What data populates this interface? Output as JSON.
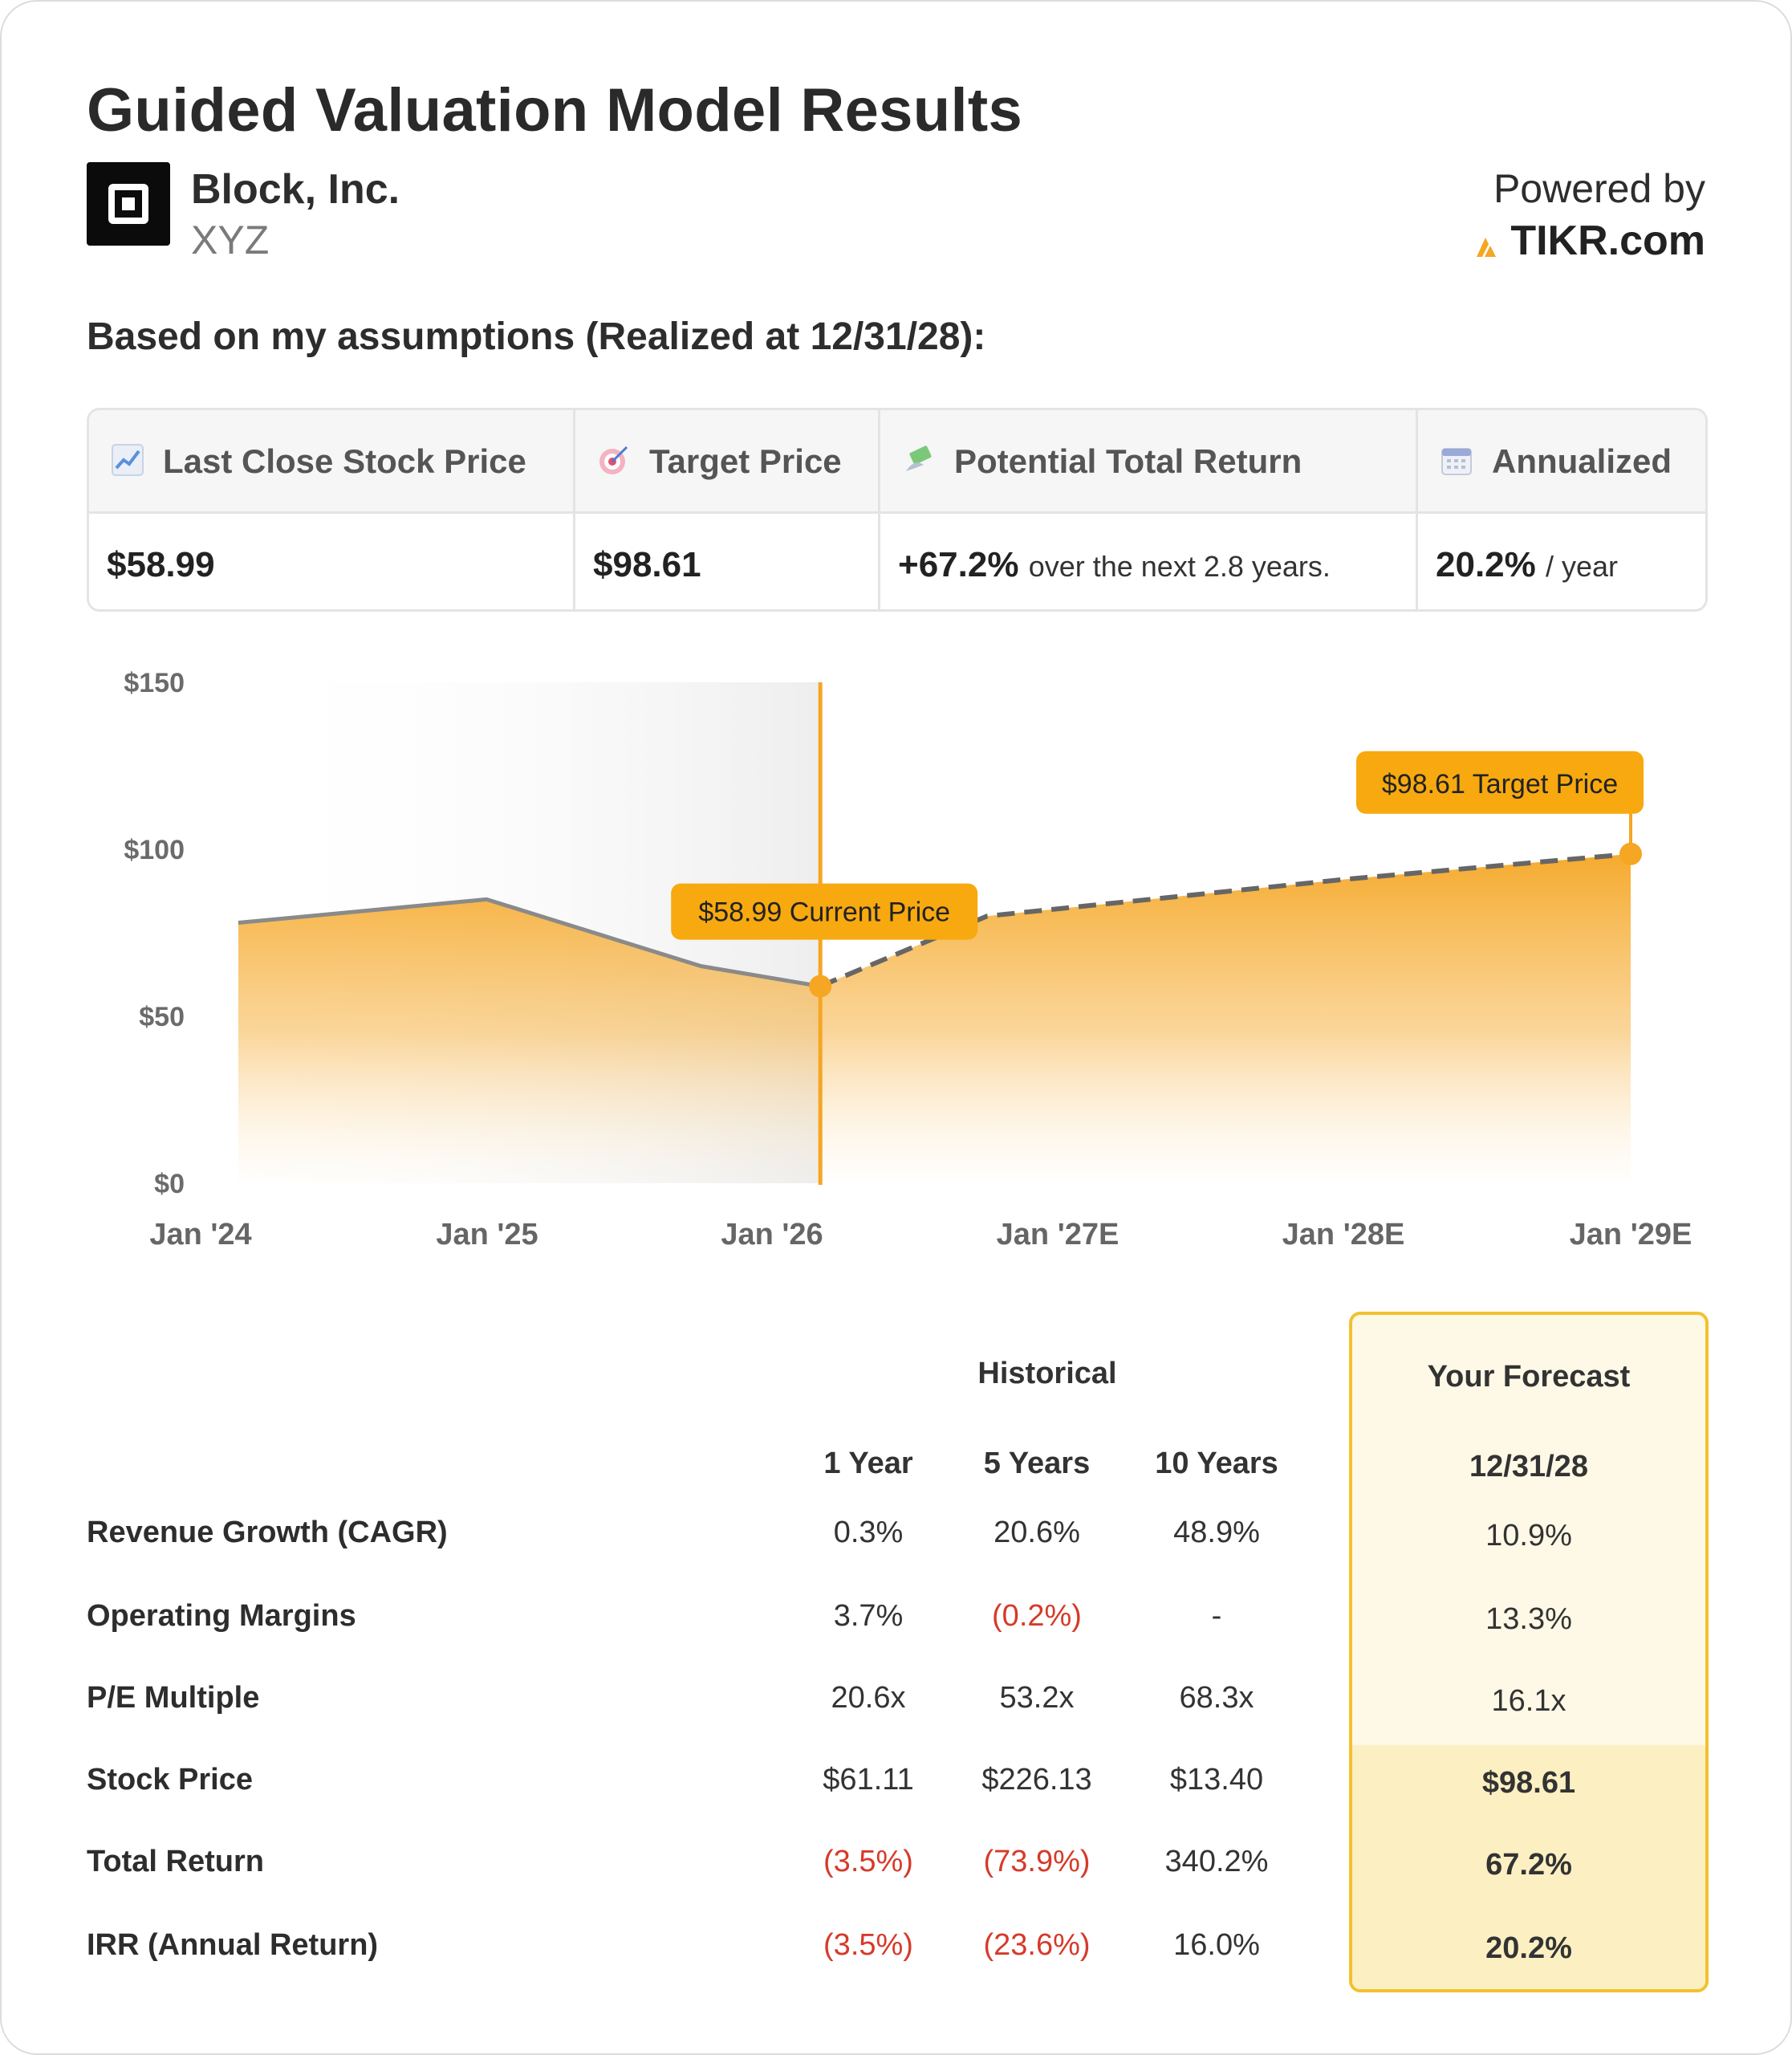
{
  "title": "Guided Valuation Model Results",
  "company": {
    "name": "Block, Inc.",
    "ticker": "XYZ"
  },
  "powered_by": {
    "label": "Powered by",
    "brand": "TIKR.com"
  },
  "assumption_text": "Based on my assumptions (Realized at 12/31/28):",
  "summary": {
    "last_close": {
      "label": "Last Close Stock Price",
      "value": "$58.99",
      "icon": "chart-increasing-icon"
    },
    "target": {
      "label": "Target Price",
      "value": "$98.61",
      "icon": "target-icon"
    },
    "potential": {
      "label": "Potential Total Return",
      "value": "+67.2%",
      "suffix": "over the next 2.8 years.",
      "icon": "money-wings-icon"
    },
    "annualized": {
      "label": "Annualized",
      "value": "20.2%",
      "suffix": "/ year",
      "icon": "calendar-icon"
    }
  },
  "chart_data": {
    "type": "area",
    "y_ticks": [
      "$150",
      "$100",
      "$50",
      "$0"
    ],
    "ylim": [
      0,
      150
    ],
    "x_ticks": [
      "Jan '24",
      "Jan '25",
      "Jan '26",
      "Jan '27E",
      "Jan '28E",
      "Jan '29E"
    ],
    "historical": [
      {
        "x": "Jan '24",
        "y": 78
      },
      {
        "x": "Jan '25",
        "y": 85
      },
      {
        "x": "Oct '25",
        "y": 65
      },
      {
        "x": "Mar '26",
        "y": 58.99
      }
    ],
    "forecast": [
      {
        "x": "Mar '26",
        "y": 58.99
      },
      {
        "x": "Oct '26",
        "y": 80
      },
      {
        "x": "Jan '28E",
        "y": 91
      },
      {
        "x": "Jan '29E",
        "y": 98.61
      }
    ],
    "annotations": [
      {
        "label": "$58.99 Current Price",
        "x": "Mar '26",
        "y": 58.99
      },
      {
        "label": "$98.61 Target Price",
        "x": "Jan '29E",
        "y": 98.61
      }
    ],
    "colors": {
      "area": "#f5a623",
      "line_hist": "#8a8a8a",
      "line_forecast": "#666666",
      "marker": "#f5a623",
      "label_bg": "#f7a90f"
    }
  },
  "table": {
    "historical_header": "Historical",
    "forecast_header": "Your Forecast",
    "columns": [
      "1 Year",
      "5 Years",
      "10 Years"
    ],
    "forecast_column": "12/31/28",
    "rows": [
      {
        "label": "Revenue Growth (CAGR)",
        "values": [
          "0.3%",
          "20.6%",
          "48.9%"
        ],
        "neg": [
          false,
          false,
          false
        ],
        "forecast": "10.9%"
      },
      {
        "label": "Operating Margins",
        "values": [
          "3.7%",
          "(0.2%)",
          "-"
        ],
        "neg": [
          false,
          true,
          false
        ],
        "forecast": "13.3%"
      },
      {
        "label": "P/E Multiple",
        "values": [
          "20.6x",
          "53.2x",
          "68.3x"
        ],
        "neg": [
          false,
          false,
          false
        ],
        "forecast": "16.1x"
      },
      {
        "label": "Stock Price",
        "values": [
          "$61.11",
          "$226.13",
          "$13.40"
        ],
        "neg": [
          false,
          false,
          false
        ],
        "forecast": "$98.61"
      },
      {
        "label": "Total Return",
        "values": [
          "(3.5%)",
          "(73.9%)",
          "340.2%"
        ],
        "neg": [
          true,
          true,
          false
        ],
        "forecast": "67.2%"
      },
      {
        "label": "IRR (Annual Return)",
        "values": [
          "(3.5%)",
          "(23.6%)",
          "16.0%"
        ],
        "neg": [
          true,
          true,
          false
        ],
        "forecast": "20.2%"
      }
    ]
  }
}
